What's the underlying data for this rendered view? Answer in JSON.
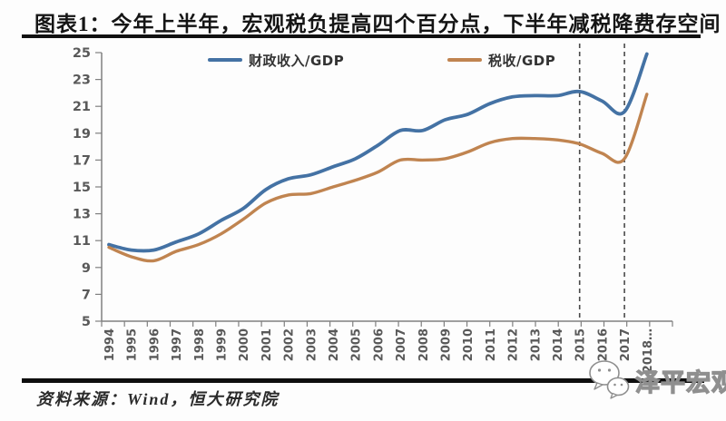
{
  "header": {
    "title": "图表1：今年上半年，宏观税负提高四个百分点，下半年减税降费存空间"
  },
  "chart_data": {
    "type": "line",
    "x": [
      1994,
      1995,
      1996,
      1997,
      1998,
      1999,
      2000,
      2001,
      2002,
      2003,
      2004,
      2005,
      2006,
      2007,
      2008,
      2009,
      2010,
      2011,
      2012,
      2013,
      2014,
      2015,
      2016,
      2017,
      2018
    ],
    "x_tick_labels": [
      "1994",
      "1995",
      "1996",
      "1997",
      "1998",
      "1999",
      "2000",
      "2001",
      "2002",
      "2003",
      "2004",
      "2005",
      "2006",
      "2007",
      "2008",
      "2009",
      "2010",
      "2011",
      "2012",
      "2013",
      "2014",
      "2015",
      "2016",
      "2017",
      "2018…"
    ],
    "series": [
      {
        "name": "财政收入/GDP",
        "color": "#4472A4",
        "values": [
          10.7,
          10.3,
          10.3,
          10.9,
          11.5,
          12.5,
          13.4,
          14.8,
          15.6,
          15.9,
          16.5,
          17.1,
          18.1,
          19.2,
          19.2,
          20.0,
          20.4,
          21.2,
          21.7,
          21.8,
          21.8,
          22.1,
          21.4,
          20.6,
          24.9
        ]
      },
      {
        "name": "税收/GDP",
        "color": "#C08450",
        "values": [
          10.5,
          9.8,
          9.5,
          10.2,
          10.7,
          11.5,
          12.6,
          13.8,
          14.4,
          14.5,
          15.0,
          15.5,
          16.1,
          17.0,
          17.0,
          17.1,
          17.6,
          18.3,
          18.6,
          18.6,
          18.5,
          18.2,
          17.5,
          17.1,
          21.9
        ]
      }
    ],
    "title": "",
    "xlabel": "",
    "ylabel": "",
    "ylim": [
      5,
      25
    ],
    "yticks": [
      5,
      7,
      9,
      11,
      13,
      15,
      17,
      19,
      21,
      23,
      25
    ],
    "grid": false,
    "legend_position": "top-inside",
    "dashed_vlines": [
      2015,
      2017
    ],
    "axis_color": "#808080",
    "tick_label_color": "#595959",
    "dashed_line_color": "#4a4a4a"
  },
  "footer": {
    "source": "资料来源：Wind，恒大研究院",
    "watermark": "泽平宏观",
    "watermark_icon": "wechat-chat-bubbles-icon"
  }
}
